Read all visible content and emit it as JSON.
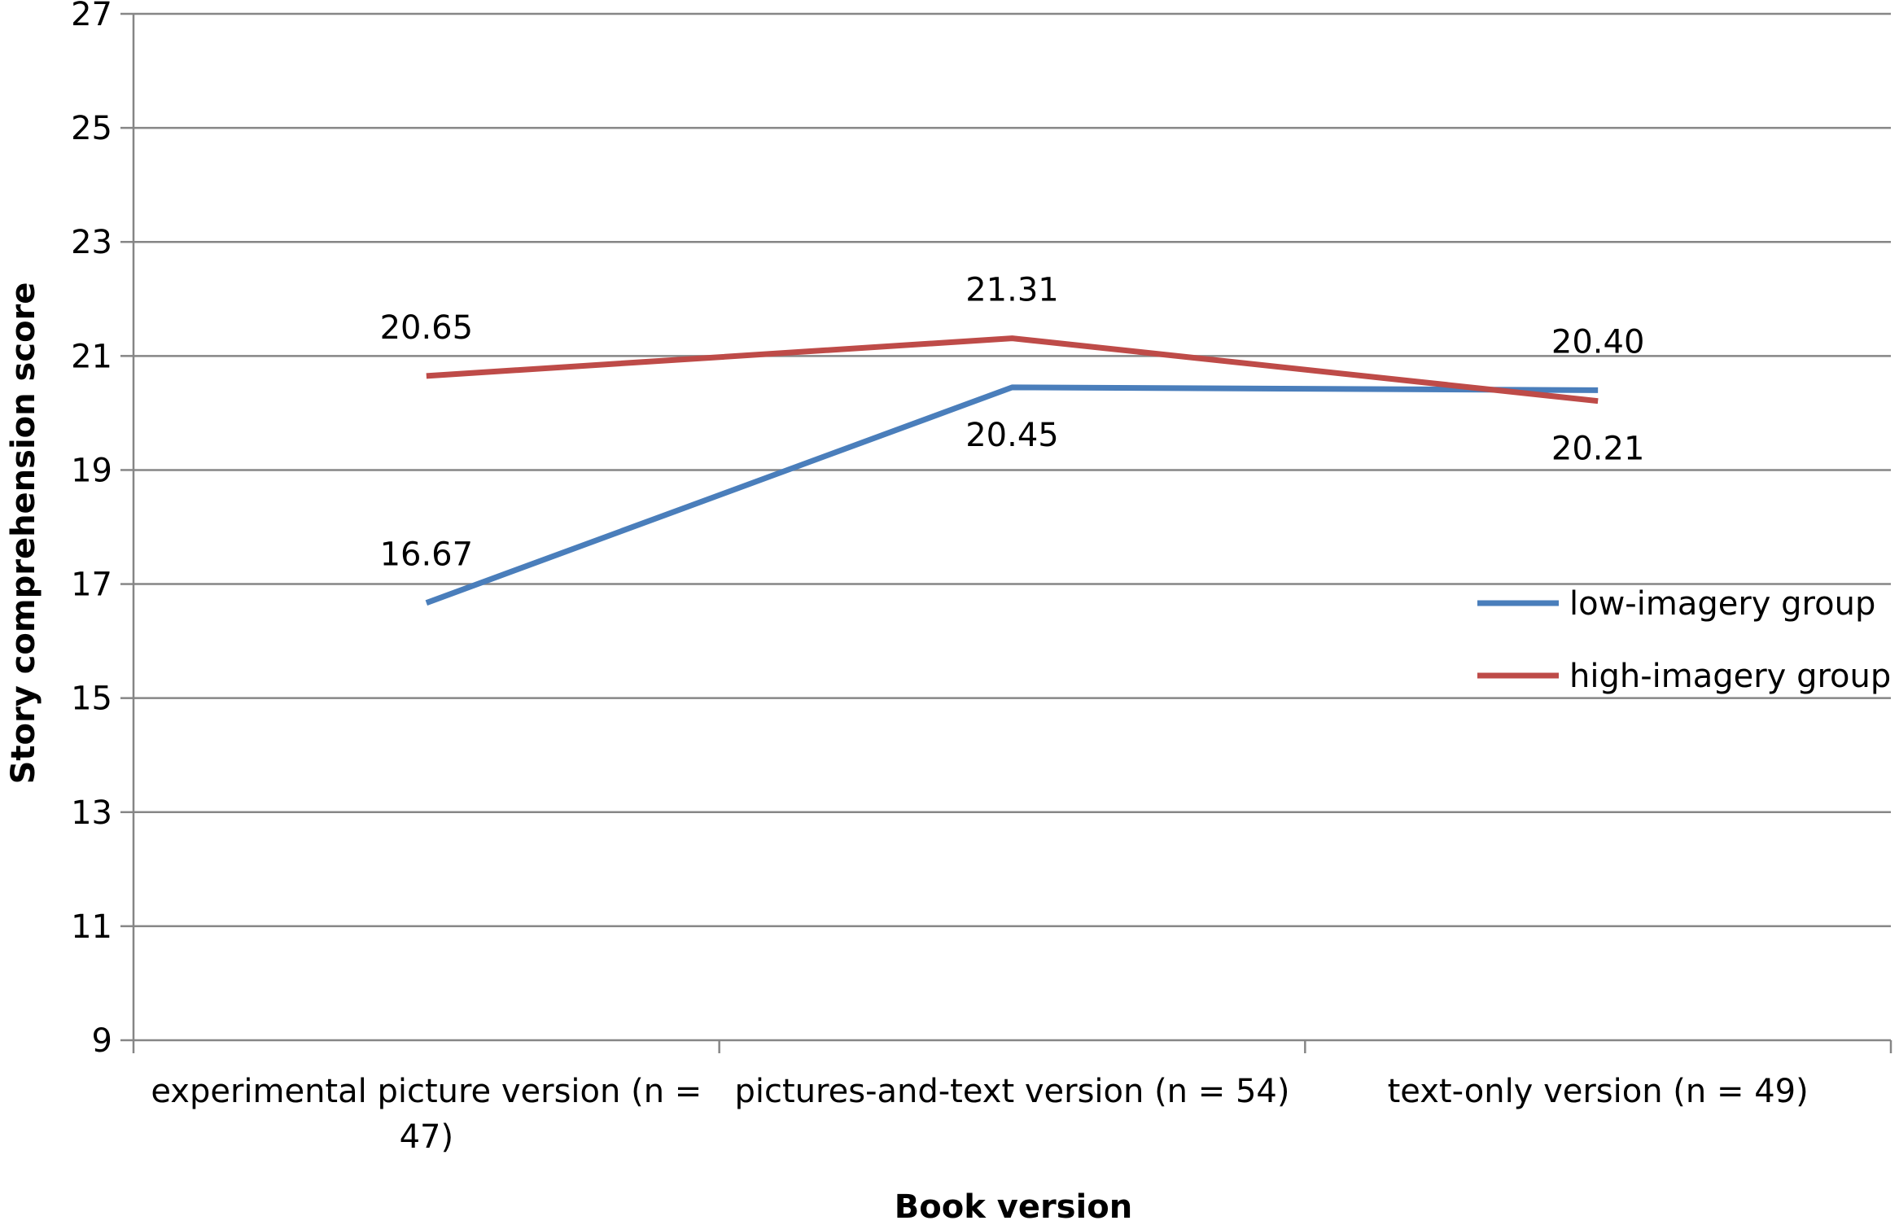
{
  "chart_data": {
    "type": "line",
    "title": "",
    "xlabel": "Book version",
    "ylabel": "Story comprehension score",
    "ylim": [
      9,
      27
    ],
    "yticks": [
      9,
      11,
      13,
      15,
      17,
      19,
      21,
      23,
      25,
      27
    ],
    "grid": true,
    "legend_position": "right",
    "categories": [
      [
        "experimental picture version (n =",
        "47)"
      ],
      [
        "pictures-and-text version (n = 54)"
      ],
      [
        "text-only version (n = 49)"
      ]
    ],
    "series": [
      {
        "name": "low-imagery group",
        "color": "#4a7ebb",
        "values": [
          16.67,
          20.45,
          20.4
        ],
        "labels": [
          "16.67",
          "20.45",
          "20.40"
        ],
        "label_side": [
          "above",
          "below",
          "above"
        ]
      },
      {
        "name": "high-imagery group",
        "color": "#be4b48",
        "values": [
          20.65,
          21.31,
          20.21
        ],
        "labels": [
          "20.65",
          "21.31",
          "20.21"
        ],
        "label_side": [
          "above",
          "above",
          "below"
        ]
      }
    ]
  }
}
